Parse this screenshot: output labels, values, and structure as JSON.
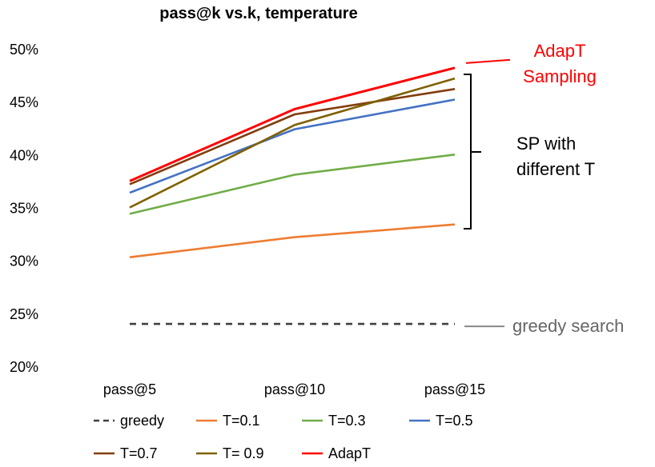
{
  "chart_data": {
    "type": "line",
    "title": "pass@k vs.k, temperature",
    "categories": [
      "pass@5",
      "pass@10",
      "pass@15"
    ],
    "ylim": [
      20,
      50
    ],
    "yticks": [
      20,
      25,
      30,
      35,
      40,
      45,
      50
    ],
    "ytick_labels": [
      "20%",
      "25%",
      "30%",
      "35%",
      "40%",
      "45%",
      "50%"
    ],
    "xlabel": "",
    "ylabel": "",
    "grid": false,
    "legend_position": "bottom",
    "series": [
      {
        "name": "greedy",
        "legend_label": "greedy",
        "values": [
          24.0,
          24.0,
          24.0
        ],
        "color": "#404040",
        "dash": true
      },
      {
        "name": "T=0.1",
        "legend_label": "T=0.1",
        "values": [
          30.3,
          32.2,
          33.4
        ],
        "color": "#ED7D31"
      },
      {
        "name": "T=0.3",
        "legend_label": "T=0.3",
        "values": [
          34.4,
          38.1,
          40.0
        ],
        "color": "#70AD47"
      },
      {
        "name": "T=0.5",
        "legend_label": "T=0.5",
        "values": [
          36.4,
          42.4,
          45.2
        ],
        "color": "#4472C4"
      },
      {
        "name": "T=0.7",
        "legend_label": "T=0.7",
        "values": [
          37.2,
          43.8,
          46.2
        ],
        "color": "#843C0C"
      },
      {
        "name": "T=0.9",
        "legend_label": "T= 0.9",
        "values": [
          35.0,
          42.8,
          47.2
        ],
        "color": "#7F6000"
      },
      {
        "name": "AdapT",
        "legend_label": "AdapT",
        "values": [
          37.5,
          44.3,
          48.2
        ],
        "color": "#FF0000"
      }
    ],
    "annotations": {
      "adapt_line1": "AdapT",
      "adapt_line2": "Sampling",
      "adapt_color": "#FF0000",
      "sp_line1": "SP with",
      "sp_line2": "different T",
      "greedy": "greedy search",
      "greedy_color": "#666666"
    }
  }
}
